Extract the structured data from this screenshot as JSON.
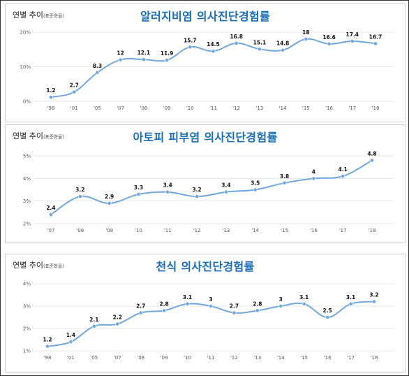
{
  "chart_data": [
    {
      "type": "line",
      "title": "알러지비염 의사진단경험률",
      "ylabel_main": "연별 추이",
      "ylabel_note": "(표준화율)",
      "categories": [
        "'98",
        "'01",
        "'05",
        "'07",
        "'08",
        "'09",
        "'10",
        "'11",
        "'12",
        "'13",
        "'14",
        "'15",
        "'16",
        "'17",
        "'18"
      ],
      "values": [
        1.2,
        2.7,
        8.3,
        12,
        12.1,
        11.9,
        15.7,
        14.5,
        16.8,
        15.1,
        14.8,
        18,
        16.6,
        17.4,
        16.7
      ],
      "value_labels": [
        "1.2",
        "2.7",
        "8.3",
        "12",
        "12.1",
        "11.9",
        "15.7",
        "14.5",
        "16.8",
        "15.1",
        "14.8",
        "18",
        "16.6",
        "17.4",
        "16.7"
      ],
      "y_ticks": [
        0,
        10,
        20
      ],
      "y_tick_labels": [
        "0%",
        "10%",
        "20%"
      ],
      "ylim": [
        0,
        20
      ],
      "grid": true,
      "color": "#6fa8dc"
    },
    {
      "type": "line",
      "title": "아토피 피부염 의사진단경험률",
      "ylabel_main": "연별 추이",
      "ylabel_note": "(표준화율)",
      "categories": [
        "'07",
        "'08",
        "'09",
        "'10",
        "'11",
        "'12",
        "'13",
        "'14",
        "'15",
        "'16",
        "'17",
        "'18"
      ],
      "values": [
        2.4,
        3.2,
        2.9,
        3.3,
        3.4,
        3.2,
        3.4,
        3.5,
        3.8,
        4,
        4.1,
        4.8
      ],
      "value_labels": [
        "2.4",
        "3.2",
        "2.9",
        "3.3",
        "3.4",
        "3.2",
        "3.4",
        "3.5",
        "3.8",
        "4",
        "4.1",
        "4.8"
      ],
      "y_ticks": [
        2,
        3,
        4,
        5
      ],
      "y_tick_labels": [
        "2%",
        "3%",
        "4%",
        "5%"
      ],
      "ylim": [
        2,
        5
      ],
      "grid": true,
      "color": "#6fa8dc"
    },
    {
      "type": "line",
      "title": "천식 의사진단경험률",
      "ylabel_main": "연별 추이",
      "ylabel_note": "(표준화율)",
      "categories": [
        "'98",
        "'01",
        "'05",
        "'07",
        "'08",
        "'09",
        "'10",
        "'11",
        "'12",
        "'13",
        "'14",
        "'15",
        "'16",
        "'17",
        "'18"
      ],
      "values": [
        1.2,
        1.4,
        2.1,
        2.2,
        2.7,
        2.8,
        3.1,
        3,
        2.7,
        2.8,
        3,
        3.1,
        2.5,
        3.1,
        3.2
      ],
      "value_labels": [
        "1.2",
        "1.4",
        "2.1",
        "2.2",
        "2.7",
        "2.8",
        "3.1",
        "3",
        "2.7",
        "2.8",
        "3",
        "3.1",
        "2.5",
        "3.1",
        "3.2"
      ],
      "y_ticks": [
        1,
        2,
        3,
        4
      ],
      "y_tick_labels": [
        "1%",
        "2%",
        "3%",
        "4%"
      ],
      "ylim": [
        1,
        4
      ],
      "grid": true,
      "color": "#6fa8dc"
    }
  ]
}
